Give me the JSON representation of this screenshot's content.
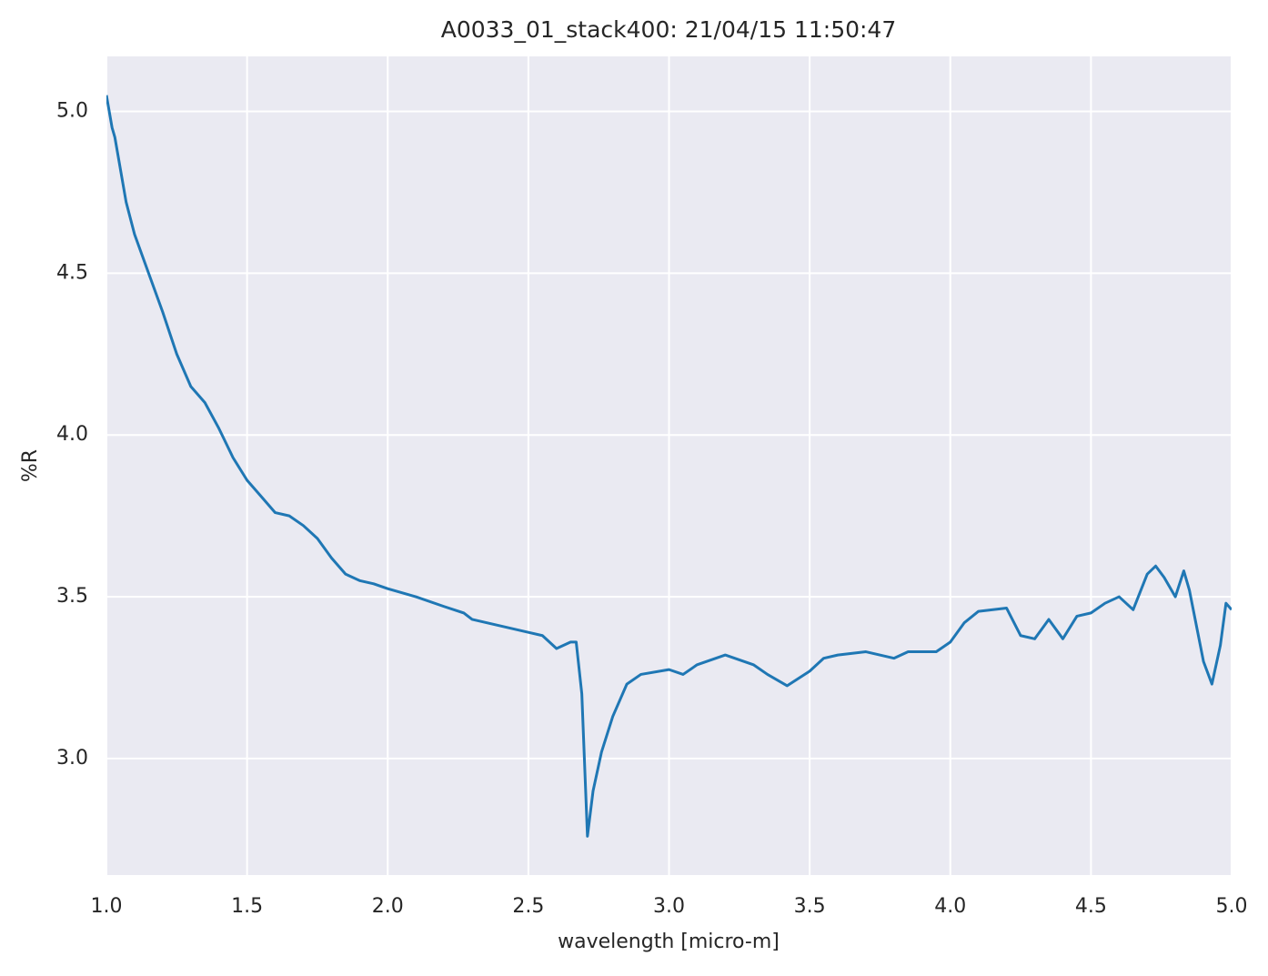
{
  "chart_data": {
    "type": "line",
    "title": "A0033_01_stack400:  21/04/15 11:50:47",
    "x_label": "wavelength [micro-m]",
    "y_label": "%R",
    "x": [
      1.0,
      1.02,
      1.03,
      1.05,
      1.07,
      1.1,
      1.15,
      1.2,
      1.25,
      1.3,
      1.35,
      1.4,
      1.45,
      1.5,
      1.55,
      1.6,
      1.65,
      1.7,
      1.75,
      1.8,
      1.85,
      1.9,
      1.95,
      2.0,
      2.1,
      2.2,
      2.27,
      2.3,
      2.4,
      2.5,
      2.55,
      2.6,
      2.65,
      2.67,
      2.69,
      2.71,
      2.73,
      2.76,
      2.8,
      2.85,
      2.9,
      3.0,
      3.05,
      3.1,
      3.2,
      3.3,
      3.35,
      3.42,
      3.5,
      3.55,
      3.6,
      3.7,
      3.8,
      3.85,
      3.95,
      4.0,
      4.05,
      4.1,
      4.2,
      4.25,
      4.3,
      4.35,
      4.4,
      4.45,
      4.5,
      4.55,
      4.6,
      4.65,
      4.7,
      4.73,
      4.76,
      4.8,
      4.83,
      4.85,
      4.9,
      4.93,
      4.96,
      4.98,
      5.0
    ],
    "series": [
      {
        "color": "#1f77b4",
        "values": [
          5.05,
          4.95,
          4.92,
          4.82,
          4.72,
          4.62,
          4.5,
          4.38,
          4.25,
          4.15,
          4.1,
          4.02,
          3.93,
          3.86,
          3.81,
          3.76,
          3.75,
          3.72,
          3.68,
          3.62,
          3.57,
          3.55,
          3.54,
          3.525,
          3.5,
          3.47,
          3.45,
          3.43,
          3.41,
          3.39,
          3.38,
          3.34,
          3.36,
          3.36,
          3.2,
          2.76,
          2.9,
          3.02,
          3.13,
          3.23,
          3.26,
          3.275,
          3.26,
          3.29,
          3.32,
          3.29,
          3.26,
          3.225,
          3.27,
          3.31,
          3.32,
          3.33,
          3.31,
          3.33,
          3.33,
          3.36,
          3.42,
          3.455,
          3.465,
          3.38,
          3.37,
          3.43,
          3.37,
          3.44,
          3.45,
          3.48,
          3.5,
          3.46,
          3.57,
          3.595,
          3.56,
          3.5,
          3.58,
          3.52,
          3.3,
          3.23,
          3.35,
          3.48,
          3.46
        ]
      }
    ],
    "xlim": [
      1.0,
      5.0
    ],
    "ylim": [
      2.64,
      5.17
    ],
    "xticks": [
      {
        "value": 1,
        "label": "1.0"
      },
      1.5,
      {
        "value": 2,
        "label": "2.0"
      },
      2.5,
      {
        "value": 3,
        "label": "3.0"
      },
      3.5,
      {
        "value": 4,
        "label": "4.0"
      },
      4.5,
      {
        "value": 5,
        "label": "5.0"
      }
    ],
    "yticks": [
      {
        "value": 3,
        "label": "3.0"
      },
      3.5,
      {
        "value": 4,
        "label": "4.0"
      },
      4.5,
      {
        "value": 5,
        "label": "5.0"
      }
    ],
    "grid": true
  }
}
